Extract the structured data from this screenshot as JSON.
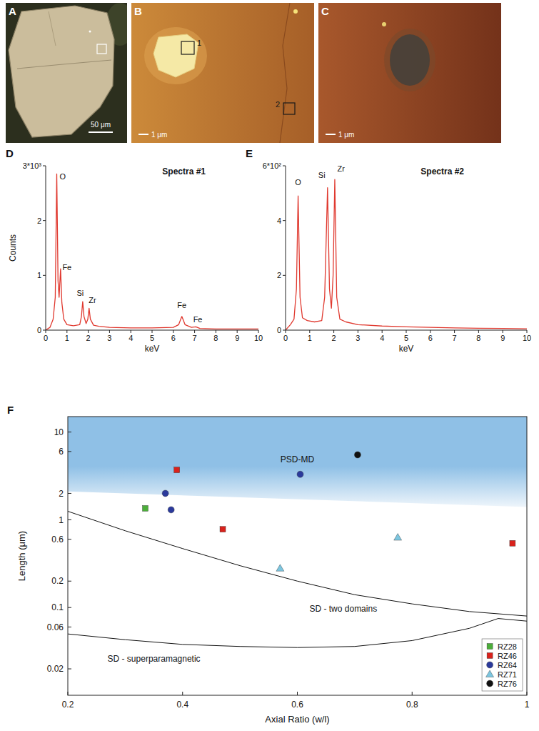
{
  "images": [
    {
      "panel": "A",
      "scale_bar": "50 μm"
    },
    {
      "panel": "B",
      "scale_bar": "1 μm",
      "boxes": [
        "1",
        "2"
      ]
    },
    {
      "panel": "C",
      "scale_bar": "1 μm"
    }
  ],
  "chart_data": [
    {
      "type": "line",
      "panel": "D",
      "title": "Spectra #1",
      "xlabel": "keV",
      "ylabel": "Counts",
      "xlim": [
        0,
        10
      ],
      "ylim": [
        0,
        3
      ],
      "xticks": [
        0,
        1,
        2,
        3,
        4,
        5,
        6,
        7,
        8,
        9,
        10
      ],
      "yticks": [
        0,
        1,
        2,
        {
          "value": 3,
          "label": "3*10³"
        }
      ],
      "series": [
        {
          "color": "#e0392f",
          "x": [
            0,
            0.2,
            0.35,
            0.45,
            0.52,
            0.58,
            0.63,
            0.7,
            0.76,
            0.85,
            1.0,
            1.3,
            1.6,
            1.68,
            1.74,
            1.8,
            1.9,
            1.98,
            2.04,
            2.1,
            2.25,
            2.5,
            3,
            4,
            5,
            6,
            6.25,
            6.4,
            6.55,
            6.85,
            7.06,
            7.25,
            8,
            9,
            10
          ],
          "values": [
            0,
            0.05,
            0.2,
            0.6,
            2.85,
            0.9,
            0.6,
            1.12,
            0.5,
            0.2,
            0.1,
            0.08,
            0.1,
            0.25,
            0.52,
            0.25,
            0.12,
            0.2,
            0.4,
            0.2,
            0.09,
            0.07,
            0.05,
            0.04,
            0.04,
            0.05,
            0.1,
            0.25,
            0.1,
            0.05,
            0.06,
            0.03,
            0.02,
            0.02,
            0.02
          ]
        }
      ],
      "annotations": [
        {
          "text": "O",
          "x": 0.8,
          "y": 2.75
        },
        {
          "text": "Fe",
          "x": 1.0,
          "y": 1.1
        },
        {
          "text": "Si",
          "x": 1.62,
          "y": 0.62
        },
        {
          "text": "Zr",
          "x": 2.2,
          "y": 0.5
        },
        {
          "text": "Fe",
          "x": 6.4,
          "y": 0.4
        },
        {
          "text": "Fe",
          "x": 7.15,
          "y": 0.15
        }
      ]
    },
    {
      "type": "line",
      "panel": "E",
      "title": "Spectra #2",
      "xlabel": "keV",
      "xlim": [
        0,
        10
      ],
      "ylim": [
        0,
        6
      ],
      "xticks": [
        0,
        1,
        2,
        3,
        4,
        5,
        6,
        7,
        8,
        9,
        10
      ],
      "yticks": [
        0,
        2,
        4,
        {
          "value": 6,
          "label": "6*10²"
        }
      ],
      "series": [
        {
          "color": "#e0392f",
          "x": [
            0,
            0.2,
            0.35,
            0.45,
            0.52,
            0.6,
            0.7,
            0.9,
            1.2,
            1.5,
            1.62,
            1.74,
            1.82,
            1.9,
            1.97,
            2.04,
            2.12,
            2.25,
            2.5,
            3,
            4,
            5,
            6,
            7,
            8,
            9,
            10
          ],
          "values": [
            0,
            0.2,
            0.4,
            1.5,
            4.9,
            1.2,
            0.45,
            0.35,
            0.3,
            0.35,
            1.2,
            5.2,
            1.5,
            0.8,
            2.0,
            5.5,
            1.2,
            0.4,
            0.3,
            0.2,
            0.15,
            0.12,
            0.1,
            0.08,
            0.07,
            0.06,
            0.05
          ]
        }
      ],
      "annotations": [
        {
          "text": "O",
          "x": 0.52,
          "y": 5.3
        },
        {
          "text": "Si",
          "x": 1.5,
          "y": 5.55
        },
        {
          "text": "Zr",
          "x": 2.3,
          "y": 5.8
        }
      ]
    },
    {
      "type": "scatter",
      "panel": "F",
      "xlabel": "Axial Ratio (w/l)",
      "ylabel": "Length (μm)",
      "log": "y",
      "xlim": [
        0.2,
        1
      ],
      "ylim": [
        0.01,
        15
      ],
      "xticks": [
        0.2,
        0.4,
        0.6,
        0.8,
        1
      ],
      "yticks": [
        0.02,
        0.06,
        0.1,
        0.2,
        0.6,
        1,
        2,
        6,
        10
      ],
      "legend": "lower right",
      "band": {
        "color": "#8fc0e6",
        "x": [
          0.2,
          1
        ],
        "lower": [
          2.1,
          1.4
        ],
        "upper": [
          15,
          15
        ]
      },
      "series": [
        {
          "name": "RZ28",
          "color": "#4cae3a",
          "marker": "square",
          "x": [
            0.335
          ],
          "values": [
            1.35
          ]
        },
        {
          "name": "RZ46",
          "color": "#d9221c",
          "marker": "square",
          "x": [
            0.39,
            0.47,
            0.975
          ],
          "values": [
            3.7,
            0.78,
            0.54
          ]
        },
        {
          "name": "RZ64",
          "color": "#2b3a9c",
          "marker": "circle",
          "x": [
            0.37,
            0.38,
            0.605
          ],
          "values": [
            2.0,
            1.3,
            3.3
          ]
        },
        {
          "name": "RZ71",
          "color": "#7cc6e0",
          "marker": "triangle",
          "x": [
            0.57,
            0.775
          ],
          "values": [
            0.28,
            0.63
          ]
        },
        {
          "name": "RZ76",
          "color": "#111111",
          "marker": "circle",
          "x": [
            0.705
          ],
          "values": [
            5.5
          ]
        },
        {
          "type": "line",
          "color": "#111111",
          "x": [
            0.2,
            0.3,
            0.4,
            0.5,
            0.6,
            0.7,
            0.8,
            0.9,
            1
          ],
          "values": [
            1.25,
            0.75,
            0.47,
            0.3,
            0.2,
            0.14,
            0.11,
            0.09,
            0.08
          ]
        },
        {
          "type": "line",
          "color": "#111111",
          "x": [
            0.2,
            0.3,
            0.4,
            0.5,
            0.6,
            0.7,
            0.8,
            0.9,
            0.95,
            1
          ],
          "values": [
            0.05,
            0.043,
            0.038,
            0.036,
            0.035,
            0.036,
            0.042,
            0.058,
            0.075,
            0.07
          ]
        }
      ],
      "annotations": [
        {
          "text": "PSD-MD",
          "x": 0.6,
          "y": 4.5
        },
        {
          "text": "SD - two domains",
          "x": 0.68,
          "y": 0.09
        },
        {
          "text": "SD - superparamagnetic",
          "x": 0.35,
          "y": 0.024
        }
      ]
    }
  ]
}
